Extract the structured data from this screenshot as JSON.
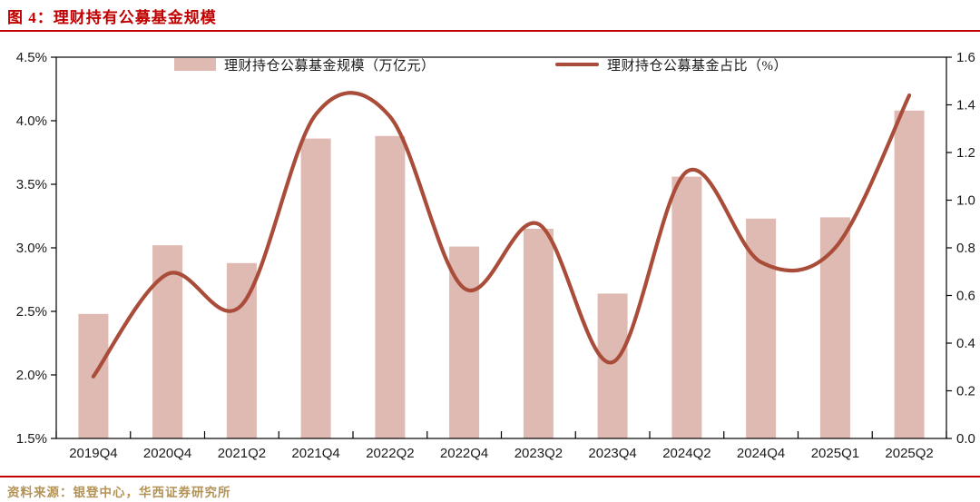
{
  "title": "图 4：理财持有公募基金规模",
  "source_note": "资料来源：银登中心，华西证券研究所",
  "legend": {
    "bar_label": "理财持仓公募基金规模（万亿元）",
    "line_label": "理财持仓公募基金占比（%）"
  },
  "colors": {
    "title_red": "#c00000",
    "bar_fill": "#debab2",
    "line": "#a94c39",
    "axis": "#000000",
    "tick_label": "#1a1a1a",
    "source_text": "#b39355"
  },
  "chart_data": {
    "type": "bar+line",
    "categories": [
      "2019Q4",
      "2020Q4",
      "2021Q2",
      "2021Q4",
      "2022Q2",
      "2022Q4",
      "2023Q2",
      "2023Q4",
      "2024Q2",
      "2024Q4",
      "2025Q1",
      "2025Q2"
    ],
    "series": [
      {
        "name": "理财持仓公募基金规模（万亿元）",
        "type": "bar",
        "axis": "left",
        "values": [
          2.48,
          3.02,
          2.88,
          3.86,
          3.88,
          3.01,
          3.15,
          2.64,
          3.56,
          3.23,
          3.24,
          4.08
        ]
      },
      {
        "name": "理财持仓公募基金占比（%）",
        "type": "line",
        "axis": "right",
        "values": [
          0.26,
          0.69,
          0.56,
          1.36,
          1.35,
          0.63,
          0.9,
          0.32,
          1.12,
          0.74,
          0.8,
          1.44
        ]
      }
    ],
    "left_axis": {
      "min": 1.5,
      "max": 4.5,
      "step": 0.5,
      "tick_labels": [
        "4.5%",
        "4.0%",
        "3.5%",
        "3.0%",
        "2.5%",
        "2.0%",
        "1.5%"
      ]
    },
    "right_axis": {
      "min": 0.0,
      "max": 1.6,
      "step": 0.2,
      "tick_labels": [
        "1.6",
        "1.4",
        "1.2",
        "1.0",
        "0.8",
        "0.6",
        "0.4",
        "0.2",
        "0.0"
      ]
    },
    "grid": false,
    "legend_position": "top"
  }
}
